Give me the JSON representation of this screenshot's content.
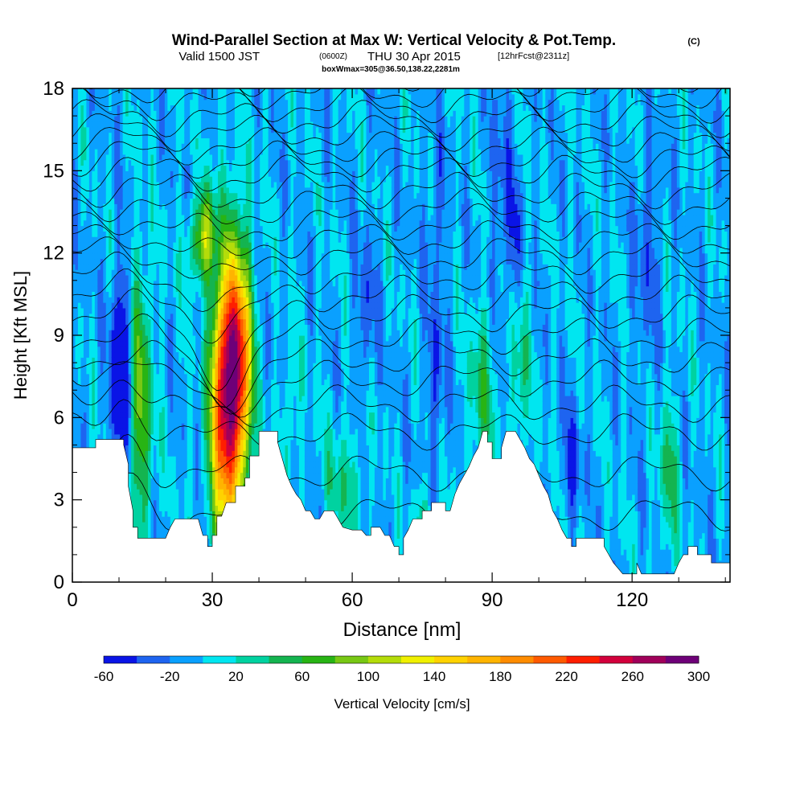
{
  "header": {
    "title": "Wind-Parallel Section at Max W: Vertical Velocity & Pot.Temp.",
    "copyright": "(C)",
    "valid_prefix": "Valid 1500 JST",
    "valid_utc": "(0600Z)",
    "valid_date": "THU 30 Apr 2015",
    "forecast": "[12hrFcst@2311z]",
    "box": "boxWmax=305@36.50,138.22,2281m"
  },
  "chart_data": {
    "type": "heatmap",
    "title": "Wind-Parallel Section at Max W: Vertical Velocity & Pot.Temp.",
    "xlabel": "Distance [nm]",
    "ylabel": "Height [Kft MSL]",
    "xlim": [
      0,
      141
    ],
    "ylim": [
      0,
      18
    ],
    "x_ticks": [
      0,
      30,
      60,
      90,
      120
    ],
    "y_ticks": [
      0,
      3,
      6,
      9,
      12,
      15,
      18
    ],
    "colorbar": {
      "label": "Vertical Velocity [cm/s]",
      "levels": [
        -60,
        -40,
        -20,
        0,
        20,
        40,
        60,
        80,
        100,
        120,
        140,
        160,
        180,
        200,
        220,
        240,
        260,
        280,
        300
      ],
      "tick_labels": [
        "-60",
        "-20",
        "20",
        "60",
        "100",
        "140",
        "180",
        "220",
        "260",
        "300"
      ],
      "colors": [
        "#0a14e6",
        "#1e64f0",
        "#0aa0ff",
        "#00e6f0",
        "#00d2a0",
        "#14b450",
        "#28b414",
        "#78c814",
        "#b4dc0a",
        "#f0f000",
        "#ffd200",
        "#ffb400",
        "#ff8c00",
        "#ff5a00",
        "#ff1e00",
        "#d2003c",
        "#a0005a",
        "#6e0078"
      ]
    },
    "terrain": [
      [
        0,
        4.9
      ],
      [
        5,
        4.9
      ],
      [
        5,
        5.2
      ],
      [
        11,
        5.2
      ],
      [
        11,
        5.0
      ],
      [
        12,
        4.3
      ],
      [
        12,
        3.5
      ],
      [
        13,
        2.6
      ],
      [
        13,
        2.0
      ],
      [
        14,
        2.0
      ],
      [
        14,
        1.6
      ],
      [
        20,
        1.6
      ],
      [
        21,
        2.0
      ],
      [
        22,
        2.3
      ],
      [
        27,
        2.3
      ],
      [
        28,
        1.7
      ],
      [
        29,
        1.7
      ],
      [
        29,
        1.3
      ],
      [
        30,
        1.3
      ],
      [
        30,
        1.7
      ],
      [
        31,
        1.7
      ],
      [
        31,
        2.4
      ],
      [
        32,
        2.4
      ],
      [
        33,
        2.9
      ],
      [
        35,
        2.9
      ],
      [
        35,
        3.5
      ],
      [
        37,
        3.5
      ],
      [
        37,
        3.8
      ],
      [
        38,
        3.8
      ],
      [
        38,
        4.6
      ],
      [
        40,
        4.6
      ],
      [
        40,
        5.5
      ],
      [
        44,
        5.5
      ],
      [
        44,
        5.1
      ],
      [
        45,
        4.5
      ],
      [
        46,
        3.9
      ],
      [
        47,
        3.5
      ],
      [
        48,
        3.2
      ],
      [
        49,
        3.0
      ],
      [
        50,
        2.6
      ],
      [
        51,
        2.6
      ],
      [
        52,
        2.3
      ],
      [
        53,
        2.3
      ],
      [
        54,
        2.6
      ],
      [
        56,
        2.6
      ],
      [
        57,
        2.3
      ],
      [
        58,
        2.0
      ],
      [
        60,
        1.9
      ],
      [
        62,
        1.9
      ],
      [
        63,
        1.7
      ],
      [
        64,
        1.7
      ],
      [
        64,
        2.0
      ],
      [
        66,
        2.0
      ],
      [
        67,
        1.7
      ],
      [
        68,
        1.7
      ],
      [
        69,
        1.3
      ],
      [
        70,
        1.3
      ],
      [
        70,
        1.0
      ],
      [
        71,
        1.0
      ],
      [
        71,
        1.6
      ],
      [
        72,
        1.9
      ],
      [
        73,
        2.3
      ],
      [
        75,
        2.3
      ],
      [
        75,
        2.6
      ],
      [
        77,
        2.6
      ],
      [
        77,
        2.9
      ],
      [
        80,
        2.9
      ],
      [
        80,
        2.6
      ],
      [
        81,
        2.6
      ],
      [
        82,
        3.2
      ],
      [
        83,
        3.6
      ],
      [
        84,
        3.9
      ],
      [
        85,
        4.2
      ],
      [
        86,
        4.6
      ],
      [
        87,
        4.9
      ],
      [
        88,
        5.5
      ],
      [
        89,
        5.5
      ],
      [
        89,
        5.1
      ],
      [
        90,
        5.1
      ],
      [
        90,
        4.5
      ],
      [
        92,
        4.5
      ],
      [
        92,
        4.9
      ],
      [
        93,
        5.5
      ],
      [
        95,
        5.5
      ],
      [
        96,
        5.2
      ],
      [
        97,
        4.9
      ],
      [
        98,
        4.5
      ],
      [
        99,
        4.3
      ],
      [
        100,
        3.9
      ],
      [
        101,
        3.5
      ],
      [
        102,
        3.2
      ],
      [
        103,
        2.6
      ],
      [
        104,
        2.3
      ],
      [
        105,
        1.9
      ],
      [
        106,
        1.6
      ],
      [
        107,
        1.6
      ],
      [
        107,
        1.3
      ],
      [
        108,
        1.3
      ],
      [
        108,
        1.6
      ],
      [
        114,
        1.6
      ],
      [
        114,
        1.3
      ],
      [
        115,
        1.0
      ],
      [
        116,
        0.7
      ],
      [
        117,
        0.5
      ],
      [
        118,
        0.3
      ],
      [
        121,
        0.3
      ],
      [
        121,
        0.7
      ],
      [
        122,
        0.3
      ],
      [
        129,
        0.3
      ],
      [
        130,
        0.7
      ],
      [
        131,
        1.0
      ],
      [
        132,
        1.0
      ],
      [
        132,
        1.3
      ],
      [
        134,
        1.3
      ],
      [
        134,
        1.0
      ],
      [
        137,
        1.0
      ],
      [
        137,
        0.7
      ],
      [
        141,
        0.7
      ],
      [
        141,
        0
      ]
    ],
    "w_cores": [
      {
        "x": 32.5,
        "y": 6.8,
        "sx": 2.0,
        "sy": 3.8,
        "w": 255
      },
      {
        "x": 36.0,
        "y": 7.8,
        "sx": 1.8,
        "sy": 3.0,
        "w": 215
      },
      {
        "x": 14.5,
        "y": 6.5,
        "sx": 1.8,
        "sy": 3.5,
        "w": 85
      },
      {
        "x": 10.5,
        "y": 7.6,
        "sx": 1.4,
        "sy": 2.5,
        "w": -90
      },
      {
        "x": 27.5,
        "y": 12.3,
        "sx": 2.2,
        "sy": 1.0,
        "w": 70
      },
      {
        "x": 31.5,
        "y": 11.6,
        "sx": 1.0,
        "sy": 1.6,
        "w": -55
      },
      {
        "x": 29.0,
        "y": 13.0,
        "sx": 1.4,
        "sy": 1.2,
        "w": 45
      },
      {
        "x": 78.0,
        "y": 7.5,
        "sx": 1.2,
        "sy": 2.0,
        "w": -38
      },
      {
        "x": 88.0,
        "y": 7.0,
        "sx": 2.0,
        "sy": 2.2,
        "w": 48
      },
      {
        "x": 96.0,
        "y": 7.6,
        "sx": 1.4,
        "sy": 2.2,
        "w": 42
      },
      {
        "x": 107.0,
        "y": 4.2,
        "sx": 1.4,
        "sy": 1.5,
        "w": -38
      },
      {
        "x": 128.0,
        "y": 4.0,
        "sx": 1.5,
        "sy": 2.0,
        "w": 48
      },
      {
        "x": 92.0,
        "y": 14.0,
        "sx": 1.6,
        "sy": 3.0,
        "w": -28
      },
      {
        "x": 78.0,
        "y": 13.5,
        "sx": 1.5,
        "sy": 2.0,
        "w": -28
      },
      {
        "x": 58.0,
        "y": 3.5,
        "sx": 3.0,
        "sy": 1.5,
        "w": 38
      },
      {
        "x": 75.0,
        "y": 2.3,
        "sx": 1.5,
        "sy": 0.8,
        "w": 38
      },
      {
        "x": 123.0,
        "y": 12.0,
        "sx": 2.0,
        "sy": 3.0,
        "w": -25
      },
      {
        "x": 63.0,
        "y": 10.0,
        "sx": 1.5,
        "sy": 2.0,
        "w": -30
      },
      {
        "x": 95.0,
        "y": 12.5,
        "sx": 1.0,
        "sy": 1.8,
        "w": -30
      },
      {
        "x": 47.0,
        "y": 6.0,
        "sx": 1.3,
        "sy": 1.5,
        "w": 30
      }
    ],
    "theta_contours": {
      "levels": [
        300,
        301,
        302,
        303,
        304,
        305,
        306,
        307,
        308,
        309,
        310,
        311,
        312,
        313,
        314,
        315,
        316,
        317,
        318,
        319,
        320,
        321,
        322,
        323
      ],
      "base_heights": [
        2.5,
        4.0,
        5.5,
        6.5,
        7.4,
        8.2,
        9.0,
        9.8,
        10.5,
        11.2,
        11.9,
        12.5,
        13.1,
        13.7,
        14.3,
        14.9,
        15.4,
        15.9,
        16.4,
        16.9,
        17.4,
        17.9,
        18.4,
        18.9
      ]
    }
  }
}
